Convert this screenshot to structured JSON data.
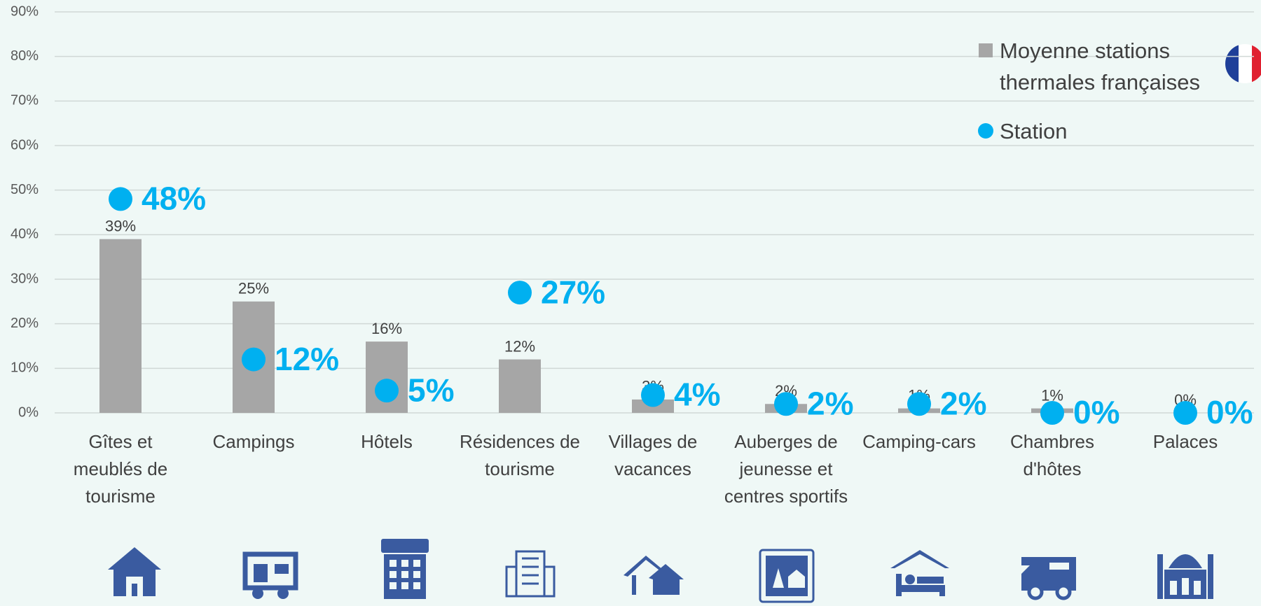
{
  "chart_data": {
    "type": "bar",
    "categories": [
      "Gîtes et meublés de tourisme",
      "Campings",
      "Hôtels",
      "Résidences de tourisme",
      "Villages de vacances",
      "Auberges de jeunesse et centres sportifs",
      "Camping-cars",
      "Chambres d'hôtes",
      "Palaces"
    ],
    "series": [
      {
        "name": "Moyenne stations thermales françaises",
        "type": "bar",
        "color": "#a6a6a6",
        "values": [
          39,
          25,
          16,
          12,
          3,
          2,
          1,
          1,
          0
        ],
        "value_labels": [
          "39%",
          "25%",
          "16%",
          "12%",
          "3%",
          "2%",
          "1%",
          "1%",
          "0%"
        ]
      },
      {
        "name": "Station",
        "type": "scatter",
        "color": "#00b0f0",
        "values": [
          48,
          12,
          5,
          27,
          4,
          2,
          2,
          0,
          0
        ],
        "value_labels": [
          "48%",
          "12%",
          "5%",
          "27%",
          "4%",
          "2%",
          "2%",
          "0%",
          "0%"
        ]
      }
    ],
    "ylim": [
      0,
      90
    ],
    "yticks": [
      {
        "value": 0,
        "label": "0%"
      },
      {
        "value": 10,
        "label": "10%"
      },
      {
        "value": 20,
        "label": "20%"
      },
      {
        "value": 30,
        "label": "30%"
      },
      {
        "value": 40,
        "label": "40%"
      },
      {
        "value": 50,
        "label": "50%"
      },
      {
        "value": 60,
        "label": "60%"
      },
      {
        "value": 70,
        "label": "70%"
      },
      {
        "value": 80,
        "label": "80%"
      },
      {
        "value": 90,
        "label": "90%"
      }
    ],
    "grid": true,
    "legend": "upper right"
  }
}
